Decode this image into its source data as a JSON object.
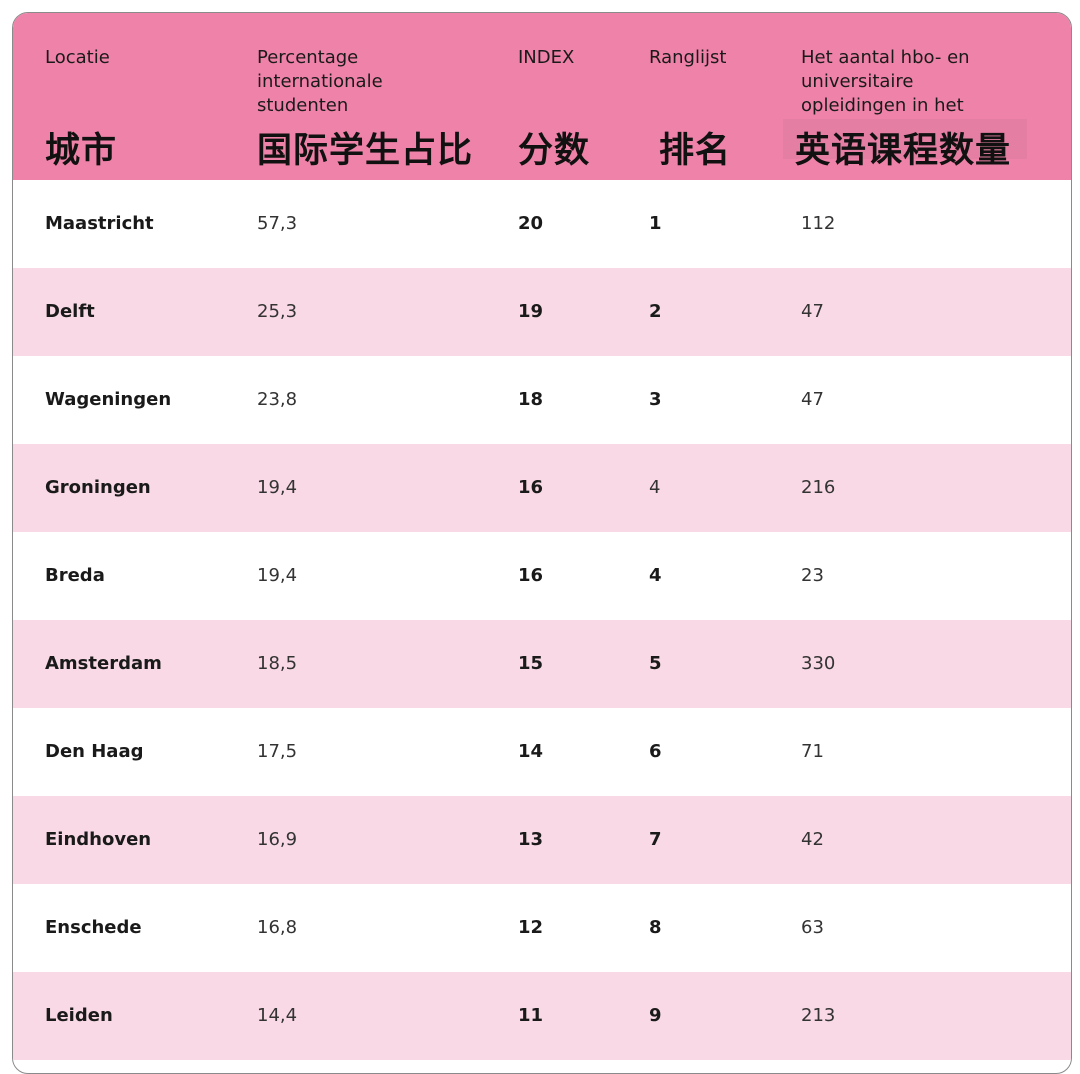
{
  "columns": [
    {
      "nl": "Locatie",
      "zh": "城市"
    },
    {
      "nl": "Percentage\ninternationale\nstudenten",
      "zh": "国际学生占比"
    },
    {
      "nl": "INDEX",
      "zh": "分数"
    },
    {
      "nl": "Ranglijst",
      "zh": "排名"
    },
    {
      "nl": "Het aantal hbo- en\nuniversitaire\nopleidingen in het",
      "zh": "英语课程数量"
    }
  ],
  "rows": [
    {
      "locatie": "Maastricht",
      "percentage": "57,3",
      "index": "20",
      "rank": "1",
      "count": "112"
    },
    {
      "locatie": "Delft",
      "percentage": "25,3",
      "index": "19",
      "rank": "2",
      "count": "47"
    },
    {
      "locatie": "Wageningen",
      "percentage": "23,8",
      "index": "18",
      "rank": "3",
      "count": "47"
    },
    {
      "locatie": "Groningen",
      "percentage": "19,4",
      "index": "16",
      "rank": "4",
      "count": "216"
    },
    {
      "locatie": "Breda",
      "percentage": "19,4",
      "index": "16",
      "rank": "4",
      "count": "23"
    },
    {
      "locatie": "Amsterdam",
      "percentage": "18,5",
      "index": "15",
      "rank": "5",
      "count": "330"
    },
    {
      "locatie": "Den Haag",
      "percentage": "17,5",
      "index": "14",
      "rank": "6",
      "count": "71"
    },
    {
      "locatie": "Eindhoven",
      "percentage": "16,9",
      "index": "13",
      "rank": "7",
      "count": "42"
    },
    {
      "locatie": "Enschede",
      "percentage": "16,8",
      "index": "12",
      "rank": "8",
      "count": "63"
    },
    {
      "locatie": "Leiden",
      "percentage": "14,4",
      "index": "11",
      "rank": "9",
      "count": "213"
    }
  ],
  "colors": {
    "header_bg": "#ef82a8",
    "row_alt_bg": "#f8d9e5",
    "row_bg": "#ffffff",
    "text": "#1a1a1a"
  }
}
